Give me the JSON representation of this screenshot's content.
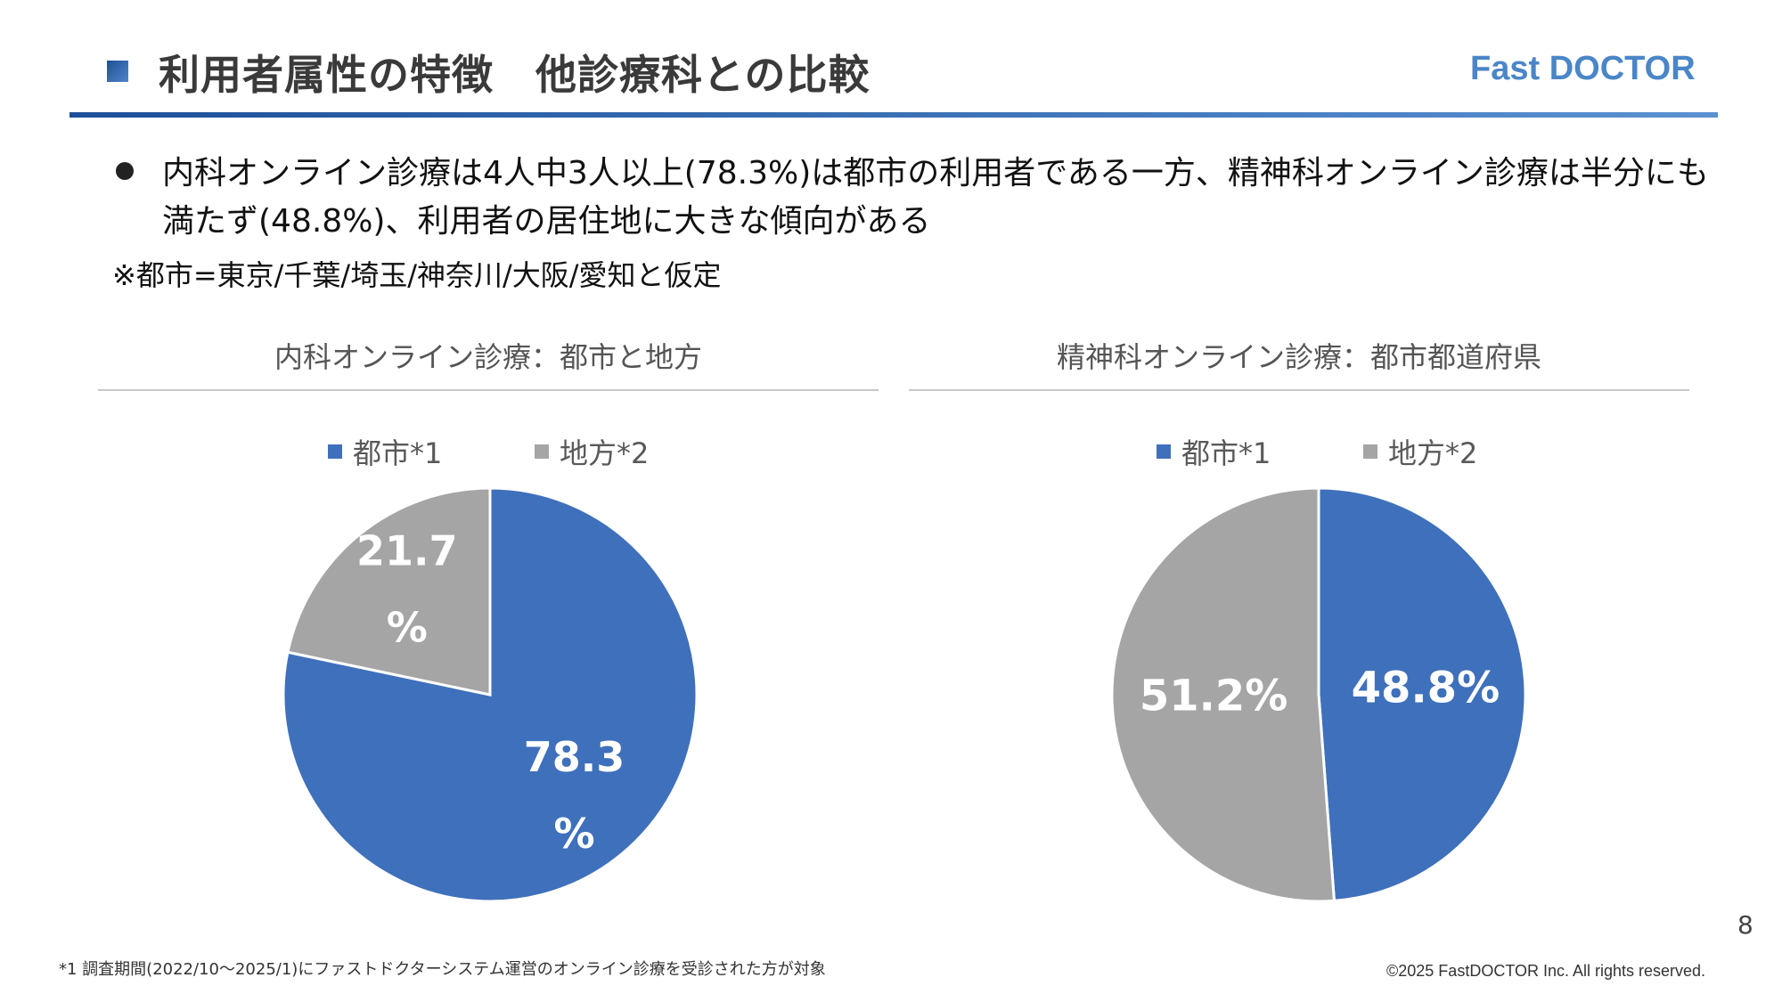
{
  "header": {
    "title": "利用者属性の特徴　他診療科との比較",
    "brand": "Fast DOCTOR",
    "colors": {
      "accent": "#2f64ad",
      "brand": "#4a86c8"
    }
  },
  "body": {
    "bullet": "内科オンライン診療は4人中3人以上(78.3%)は都市の利用者である一方、精神科オンライン診療は半分にも満たず(48.8%)、利用者の居住地に大きな傾向がある",
    "note": "※都市=東京/千葉/埼玉/神奈川/大阪/愛知と仮定"
  },
  "chart_data": [
    {
      "type": "pie",
      "title": "内科オンライン診療：都市と地方",
      "legend": [
        "都市*1",
        "地方*2"
      ],
      "slices": [
        {
          "name": "都市*1",
          "value": 78.3,
          "label": [
            "78.3",
            "%"
          ],
          "color": "#3f70bb"
        },
        {
          "name": "地方*2",
          "value": 21.7,
          "label": [
            "21.7",
            "%"
          ],
          "color": "#a5a5a5"
        }
      ]
    },
    {
      "type": "pie",
      "title": "精神科オンライン診療：都市都道府県",
      "legend": [
        "都市*1",
        "地方*2"
      ],
      "slices": [
        {
          "name": "都市*1",
          "value": 48.8,
          "label": [
            "48.8%"
          ],
          "color": "#3f70bb"
        },
        {
          "name": "地方*2",
          "value": 51.2,
          "label": [
            "51.2%"
          ],
          "color": "#a5a5a5"
        }
      ]
    }
  ],
  "footer": {
    "page_number": "8",
    "footnote": "*1 調査期間(2022/10～2025/1)にファストドクターシステム運営のオンライン診療を受診された方が対象",
    "copyright": "©2025 FastDOCTOR Inc. All rights reserved."
  }
}
